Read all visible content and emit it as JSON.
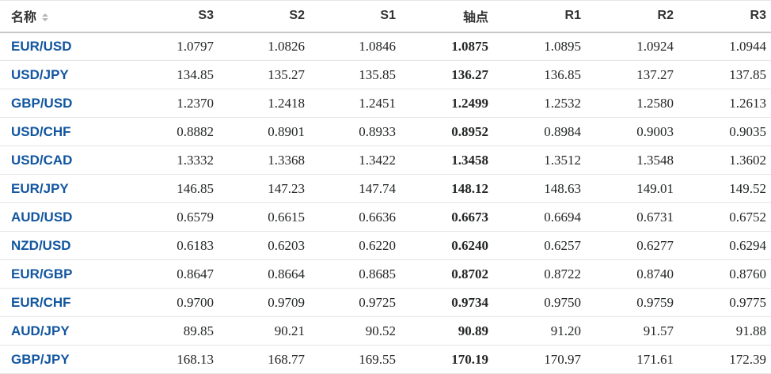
{
  "table": {
    "columns": [
      {
        "key": "name",
        "label": "名称",
        "align": "left",
        "sortable": true
      },
      {
        "key": "s3",
        "label": "S3"
      },
      {
        "key": "s2",
        "label": "S2"
      },
      {
        "key": "s1",
        "label": "S1"
      },
      {
        "key": "pivot",
        "label": "轴点",
        "emphasis": true
      },
      {
        "key": "r1",
        "label": "R1"
      },
      {
        "key": "r2",
        "label": "R2"
      },
      {
        "key": "r3",
        "label": "R3"
      }
    ],
    "rows": [
      {
        "name": "EUR/USD",
        "s3": "1.0797",
        "s2": "1.0826",
        "s1": "1.0846",
        "pivot": "1.0875",
        "r1": "1.0895",
        "r2": "1.0924",
        "r3": "1.0944"
      },
      {
        "name": "USD/JPY",
        "s3": "134.85",
        "s2": "135.27",
        "s1": "135.85",
        "pivot": "136.27",
        "r1": "136.85",
        "r2": "137.27",
        "r3": "137.85"
      },
      {
        "name": "GBP/USD",
        "s3": "1.2370",
        "s2": "1.2418",
        "s1": "1.2451",
        "pivot": "1.2499",
        "r1": "1.2532",
        "r2": "1.2580",
        "r3": "1.2613"
      },
      {
        "name": "USD/CHF",
        "s3": "0.8882",
        "s2": "0.8901",
        "s1": "0.8933",
        "pivot": "0.8952",
        "r1": "0.8984",
        "r2": "0.9003",
        "r3": "0.9035"
      },
      {
        "name": "USD/CAD",
        "s3": "1.3332",
        "s2": "1.3368",
        "s1": "1.3422",
        "pivot": "1.3458",
        "r1": "1.3512",
        "r2": "1.3548",
        "r3": "1.3602"
      },
      {
        "name": "EUR/JPY",
        "s3": "146.85",
        "s2": "147.23",
        "s1": "147.74",
        "pivot": "148.12",
        "r1": "148.63",
        "r2": "149.01",
        "r3": "149.52"
      },
      {
        "name": "AUD/USD",
        "s3": "0.6579",
        "s2": "0.6615",
        "s1": "0.6636",
        "pivot": "0.6673",
        "r1": "0.6694",
        "r2": "0.6731",
        "r3": "0.6752"
      },
      {
        "name": "NZD/USD",
        "s3": "0.6183",
        "s2": "0.6203",
        "s1": "0.6220",
        "pivot": "0.6240",
        "r1": "0.6257",
        "r2": "0.6277",
        "r3": "0.6294"
      },
      {
        "name": "EUR/GBP",
        "s3": "0.8647",
        "s2": "0.8664",
        "s1": "0.8685",
        "pivot": "0.8702",
        "r1": "0.8722",
        "r2": "0.8740",
        "r3": "0.8760"
      },
      {
        "name": "EUR/CHF",
        "s3": "0.9700",
        "s2": "0.9709",
        "s1": "0.9725",
        "pivot": "0.9734",
        "r1": "0.9750",
        "r2": "0.9759",
        "r3": "0.9775"
      },
      {
        "name": "AUD/JPY",
        "s3": "89.85",
        "s2": "90.21",
        "s1": "90.52",
        "pivot": "90.89",
        "r1": "91.20",
        "r2": "91.57",
        "r3": "91.88"
      },
      {
        "name": "GBP/JPY",
        "s3": "168.13",
        "s2": "168.77",
        "s1": "169.55",
        "pivot": "170.19",
        "r1": "170.97",
        "r2": "171.61",
        "r3": "172.39"
      }
    ]
  },
  "icons": {
    "sort": "sort-asc-desc-arrows"
  },
  "colors": {
    "link_blue": "#1256a0",
    "number_text": "#232526",
    "header_text": "#333333",
    "row_border": "#e6e6e6",
    "header_border": "#c7c7c7",
    "sort_icon": "#b5b5b5"
  }
}
